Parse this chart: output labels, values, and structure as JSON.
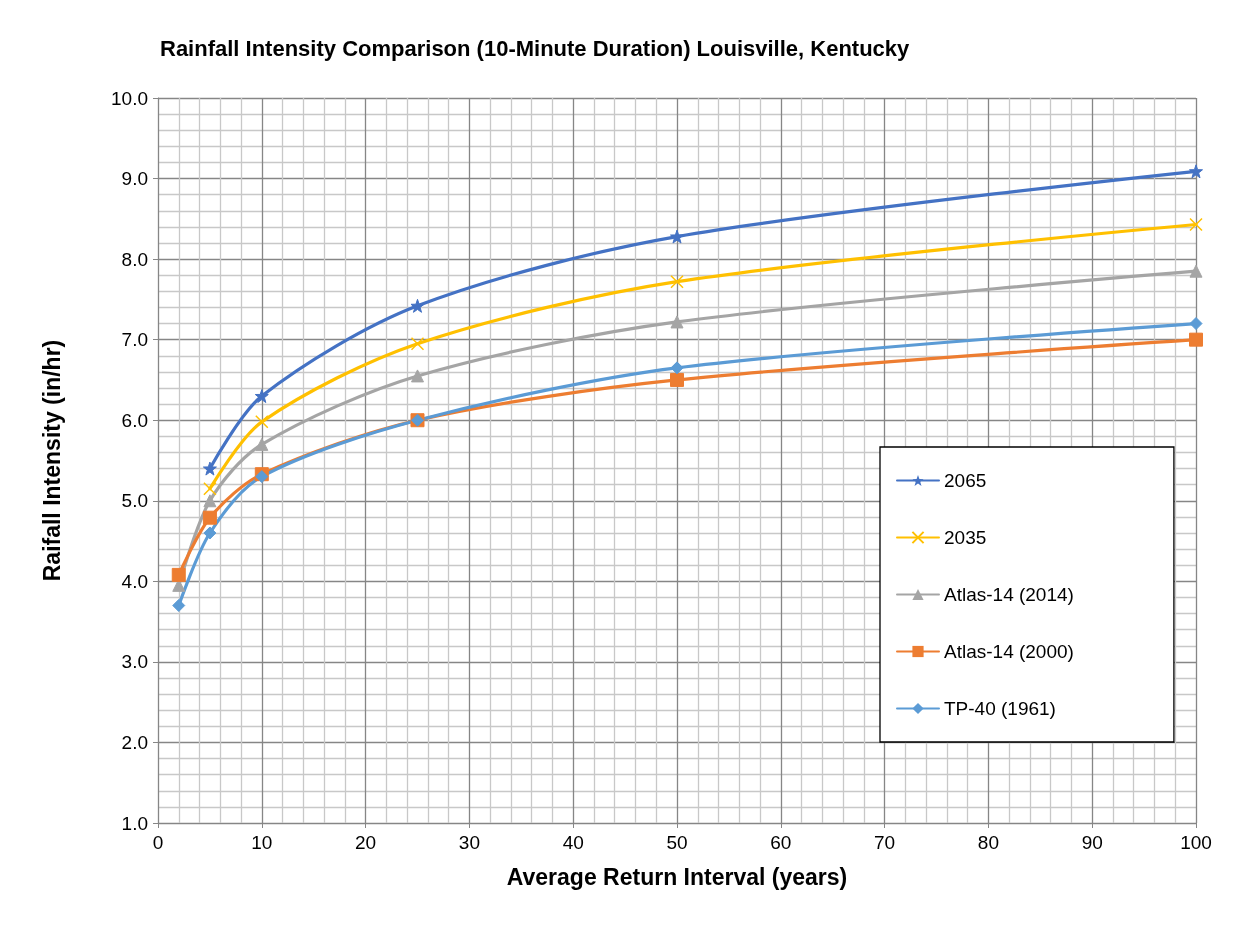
{
  "chart_data": {
    "type": "line",
    "title": "Rainfall Intensity Comparison (10-Minute Duration) Louisville, Kentucky",
    "xlabel": "Average Return Interval (years)",
    "ylabel": "Raifall Intensity (in/hr)",
    "x": [
      2,
      5,
      10,
      25,
      50,
      100
    ],
    "series": [
      {
        "name": "2065",
        "color": "#4472c4",
        "marker": "star",
        "values": [
          null,
          5.4,
          6.3,
          7.42,
          8.28,
          9.09
        ]
      },
      {
        "name": "2035",
        "color": "#ffc000",
        "marker": "cross",
        "values": [
          null,
          5.15,
          5.98,
          6.95,
          7.72,
          8.43
        ]
      },
      {
        "name": "Atlas-14 (2014)",
        "color": "#a5a5a5",
        "marker": "triangle",
        "values": [
          3.95,
          5.0,
          5.7,
          6.55,
          7.22,
          7.85
        ]
      },
      {
        "name": "Atlas-14 (2000)",
        "color": "#ed7d31",
        "marker": "square",
        "values": [
          4.08,
          4.79,
          5.33,
          6.0,
          6.5,
          7.0
        ]
      },
      {
        "name": "TP-40 (1961)",
        "color": "#5b9bd5",
        "marker": "diamond",
        "values": [
          3.7,
          4.6,
          5.3,
          6.0,
          6.65,
          7.2
        ]
      }
    ],
    "xlim": [
      0,
      100
    ],
    "xticks": [
      0,
      10,
      20,
      30,
      40,
      50,
      60,
      70,
      80,
      90,
      100
    ],
    "ylim": [
      1,
      10
    ],
    "yticks": [
      {
        "value": 1,
        "label": "1.0"
      },
      {
        "value": 2,
        "label": "2.0"
      },
      {
        "value": 3,
        "label": "3.0"
      },
      {
        "value": 4,
        "label": "4.0"
      },
      {
        "value": 5,
        "label": "5.0"
      },
      {
        "value": 6,
        "label": "6.0"
      },
      {
        "value": 7,
        "label": "7.0"
      },
      {
        "value": 8,
        "label": "8.0"
      },
      {
        "value": 9,
        "label": "9.0"
      },
      {
        "value": 10,
        "label": "10.0"
      }
    ],
    "grid": true,
    "legend": "bottom right",
    "line_style": "solid"
  }
}
